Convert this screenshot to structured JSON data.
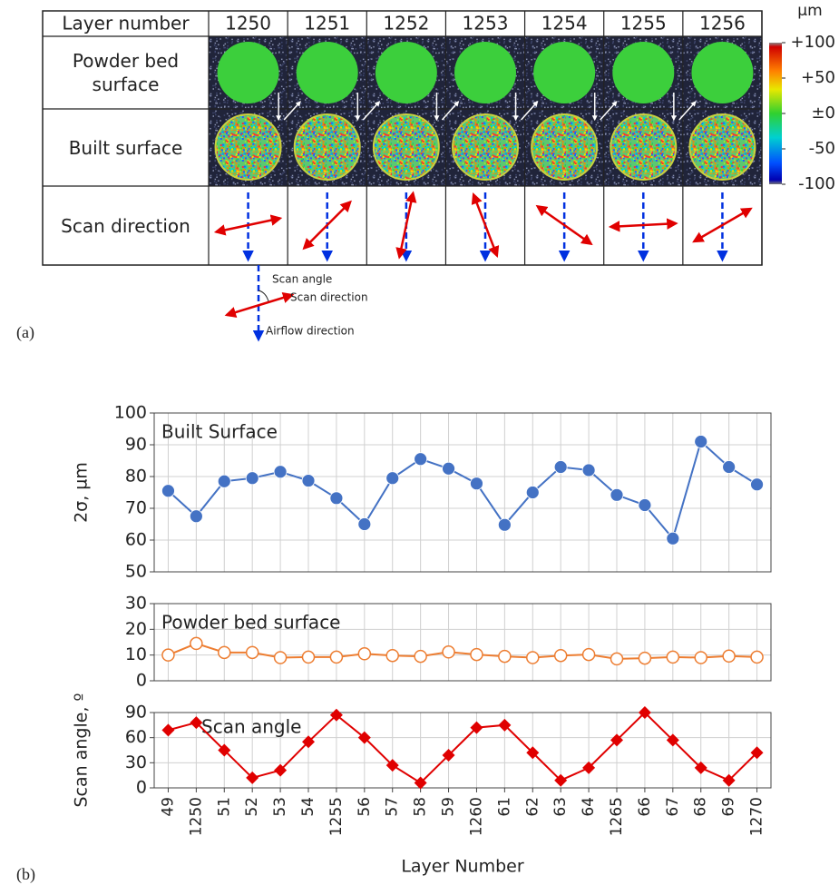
{
  "figure_a": {
    "panel_label": "(a)",
    "table": {
      "header": "Layer number",
      "layers": [
        1250,
        1251,
        1252,
        1253,
        1254,
        1255,
        1256
      ],
      "rows": [
        "Powder bed surface",
        "Built surface",
        "Scan direction"
      ]
    },
    "colorbar": {
      "unit": "µm",
      "lim": [
        -100,
        100
      ],
      "ticks": [
        {
          "value": 100,
          "label": "+100"
        },
        {
          "value": 50,
          "label": "+50"
        },
        {
          "value": 0,
          "label": "±0"
        },
        -50,
        -100
      ]
    },
    "legend": {
      "angle": "Scan angle",
      "scan": "Scan direction",
      "airflow": "Airflow direction"
    }
  },
  "figure_b": {
    "panel_label": "(b)"
  },
  "chart_data": [
    {
      "type": "line",
      "title": "Built Surface",
      "ylabel": "2σ, µm",
      "color": "#4472c4",
      "marker": "circle",
      "values": [
        75.5,
        67.5,
        78.5,
        79.5,
        81.5,
        78.7,
        73.2,
        65,
        79.5,
        85.5,
        82.5,
        77.8,
        64.8,
        75,
        83,
        82,
        74.2,
        71,
        60.5,
        91,
        83,
        77.5
      ],
      "ylim": [
        50,
        100
      ],
      "yticks": [
        50,
        60,
        70,
        80,
        90,
        100
      ],
      "grid": true
    },
    {
      "type": "line",
      "title": "Powder bed surface",
      "color": "#ed7d31",
      "marker": "circle-open",
      "values": [
        10,
        14.5,
        11,
        11,
        9,
        9.2,
        9.2,
        10.5,
        9.8,
        9.5,
        11.2,
        10.2,
        9.5,
        9,
        9.8,
        10.2,
        8.5,
        8.8,
        9.2,
        9,
        9.6,
        9.2
      ],
      "ylim": [
        0,
        30
      ],
      "yticks": [
        0,
        10,
        20,
        30
      ],
      "grid": true
    },
    {
      "type": "line",
      "title": "Scan angle",
      "ylabel": "Scan angle, º",
      "xlabel": "Layer Number",
      "color": "#e00000",
      "marker": "diamond",
      "categories": [
        "49",
        "1250",
        "51",
        "52",
        "53",
        "54",
        "1255",
        "56",
        "57",
        "58",
        "59",
        "1260",
        "61",
        "62",
        "63",
        "64",
        "1265",
        "66",
        "67",
        "68",
        "69",
        "1270"
      ],
      "values": [
        69,
        78,
        45,
        12,
        21,
        55,
        87,
        60,
        27,
        6,
        39,
        72,
        75,
        42,
        9,
        24,
        57,
        90,
        57,
        24,
        9,
        42
      ],
      "ylim": [
        0,
        90
      ],
      "yticks": [
        0,
        30,
        60,
        90
      ],
      "grid": true
    }
  ]
}
